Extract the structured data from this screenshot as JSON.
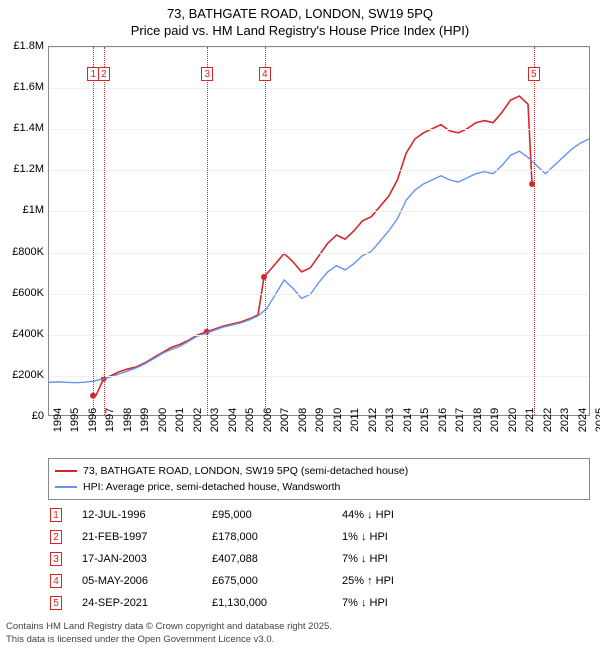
{
  "header": {
    "line1": "73, BATHGATE ROAD, LONDON, SW19 5PQ",
    "line2": "Price paid vs. HM Land Registry's House Price Index (HPI)"
  },
  "chart": {
    "type": "line",
    "background_color": "#ffffff",
    "grid_color": "#f0f0f0",
    "x": {
      "min": 1994,
      "max": 2025,
      "step": 1,
      "labels": [
        "1994",
        "1995",
        "1996",
        "1997",
        "1998",
        "1999",
        "2000",
        "2001",
        "2002",
        "2003",
        "2004",
        "2005",
        "2006",
        "2007",
        "2008",
        "2009",
        "2010",
        "2011",
        "2012",
        "2013",
        "2014",
        "2015",
        "2016",
        "2017",
        "2018",
        "2019",
        "2020",
        "2021",
        "2022",
        "2023",
        "2024",
        "2025"
      ]
    },
    "y": {
      "min": 0,
      "max": 1800000,
      "step": 200000,
      "labels": [
        "£0",
        "£200K",
        "£400K",
        "£600K",
        "£800K",
        "£1M",
        "£1.2M",
        "£1.4M",
        "£1.6M",
        "£1.8M"
      ]
    },
    "series": [
      {
        "name": "73, BATHGATE ROAD, LONDON, SW19 5PQ (semi-detached house)",
        "color": "#d62728",
        "width": 1.6,
        "data": [
          [
            1996.53,
            95000
          ],
          [
            1996.7,
            96000
          ],
          [
            1997.14,
            178000
          ],
          [
            1997.5,
            190000
          ],
          [
            1998,
            210000
          ],
          [
            1998.5,
            225000
          ],
          [
            1999,
            235000
          ],
          [
            1999.5,
            255000
          ],
          [
            2000,
            280000
          ],
          [
            2000.5,
            305000
          ],
          [
            2001,
            330000
          ],
          [
            2001.5,
            345000
          ],
          [
            2002,
            365000
          ],
          [
            2002.5,
            390000
          ],
          [
            2003.05,
            407088
          ],
          [
            2003.5,
            420000
          ],
          [
            2004,
            435000
          ],
          [
            2004.5,
            445000
          ],
          [
            2005,
            455000
          ],
          [
            2005.5,
            470000
          ],
          [
            2006,
            490000
          ],
          [
            2006.34,
            675000
          ],
          [
            2006.5,
            690000
          ],
          [
            2007,
            740000
          ],
          [
            2007.5,
            790000
          ],
          [
            2008,
            750000
          ],
          [
            2008.5,
            700000
          ],
          [
            2009,
            720000
          ],
          [
            2009.5,
            780000
          ],
          [
            2010,
            840000
          ],
          [
            2010.5,
            880000
          ],
          [
            2011,
            860000
          ],
          [
            2011.5,
            900000
          ],
          [
            2012,
            950000
          ],
          [
            2012.5,
            970000
          ],
          [
            2013,
            1020000
          ],
          [
            2013.5,
            1070000
          ],
          [
            2014,
            1150000
          ],
          [
            2014.5,
            1280000
          ],
          [
            2015,
            1350000
          ],
          [
            2015.5,
            1380000
          ],
          [
            2016,
            1400000
          ],
          [
            2016.5,
            1420000
          ],
          [
            2017,
            1390000
          ],
          [
            2017.5,
            1380000
          ],
          [
            2018,
            1400000
          ],
          [
            2018.5,
            1430000
          ],
          [
            2019,
            1440000
          ],
          [
            2019.5,
            1430000
          ],
          [
            2020,
            1480000
          ],
          [
            2020.5,
            1540000
          ],
          [
            2021,
            1560000
          ],
          [
            2021.5,
            1520000
          ],
          [
            2021.73,
            1130000
          ],
          [
            2021.8,
            1140000
          ]
        ],
        "dots": [
          [
            1996.53,
            95000
          ],
          [
            1997.14,
            178000
          ],
          [
            2003.05,
            407088
          ],
          [
            2006.34,
            675000
          ],
          [
            2021.73,
            1130000
          ]
        ]
      },
      {
        "name": "HPI: Average price, semi-detached house, Wandsworth",
        "color": "#6495ed",
        "width": 1.4,
        "data": [
          [
            1994,
            160000
          ],
          [
            1994.5,
            162000
          ],
          [
            1995,
            160000
          ],
          [
            1995.5,
            158000
          ],
          [
            1996,
            160000
          ],
          [
            1996.5,
            165000
          ],
          [
            1997,
            175000
          ],
          [
            1997.5,
            185000
          ],
          [
            1998,
            200000
          ],
          [
            1998.5,
            215000
          ],
          [
            1999,
            230000
          ],
          [
            1999.5,
            250000
          ],
          [
            2000,
            275000
          ],
          [
            2000.5,
            300000
          ],
          [
            2001,
            320000
          ],
          [
            2001.5,
            335000
          ],
          [
            2002,
            360000
          ],
          [
            2002.5,
            385000
          ],
          [
            2003,
            400000
          ],
          [
            2003.5,
            415000
          ],
          [
            2004,
            430000
          ],
          [
            2004.5,
            440000
          ],
          [
            2005,
            450000
          ],
          [
            2005.5,
            465000
          ],
          [
            2006,
            485000
          ],
          [
            2006.5,
            520000
          ],
          [
            2007,
            590000
          ],
          [
            2007.5,
            660000
          ],
          [
            2008,
            620000
          ],
          [
            2008.5,
            570000
          ],
          [
            2009,
            590000
          ],
          [
            2009.5,
            650000
          ],
          [
            2010,
            700000
          ],
          [
            2010.5,
            730000
          ],
          [
            2011,
            710000
          ],
          [
            2011.5,
            740000
          ],
          [
            2012,
            780000
          ],
          [
            2012.5,
            800000
          ],
          [
            2013,
            850000
          ],
          [
            2013.5,
            900000
          ],
          [
            2014,
            960000
          ],
          [
            2014.5,
            1050000
          ],
          [
            2015,
            1100000
          ],
          [
            2015.5,
            1130000
          ],
          [
            2016,
            1150000
          ],
          [
            2016.5,
            1170000
          ],
          [
            2017,
            1150000
          ],
          [
            2017.5,
            1140000
          ],
          [
            2018,
            1160000
          ],
          [
            2018.5,
            1180000
          ],
          [
            2019,
            1190000
          ],
          [
            2019.5,
            1180000
          ],
          [
            2020,
            1220000
          ],
          [
            2020.5,
            1270000
          ],
          [
            2021,
            1290000
          ],
          [
            2021.5,
            1260000
          ],
          [
            2022,
            1220000
          ],
          [
            2022.5,
            1180000
          ],
          [
            2023,
            1220000
          ],
          [
            2023.5,
            1260000
          ],
          [
            2024,
            1300000
          ],
          [
            2024.5,
            1330000
          ],
          [
            2025,
            1350000
          ]
        ]
      }
    ],
    "event_lines": [
      {
        "num": "1",
        "year": 1996.53,
        "color": "#d62728"
      },
      {
        "num": "2",
        "year": 1997.14,
        "color": "#d62728"
      },
      {
        "num": "3",
        "year": 2003.05,
        "color": "#d62728"
      },
      {
        "num": "4",
        "year": 2006.34,
        "color": "#d62728"
      },
      {
        "num": "5",
        "year": 2021.73,
        "color": "#d62728"
      }
    ]
  },
  "legend": {
    "items": [
      {
        "color": "#d62728",
        "label": "73, BATHGATE ROAD, LONDON, SW19 5PQ (semi-detached house)"
      },
      {
        "color": "#6495ed",
        "label": "HPI: Average price, semi-detached house, Wandsworth"
      }
    ]
  },
  "events_table": {
    "rows": [
      {
        "num": "1",
        "date": "12-JUL-1996",
        "price": "£95,000",
        "delta": "44% ↓ HPI"
      },
      {
        "num": "2",
        "date": "21-FEB-1997",
        "price": "£178,000",
        "delta": "1% ↓ HPI"
      },
      {
        "num": "3",
        "date": "17-JAN-2003",
        "price": "£407,088",
        "delta": "7% ↓ HPI"
      },
      {
        "num": "4",
        "date": "05-MAY-2006",
        "price": "£675,000",
        "delta": "25% ↑ HPI"
      },
      {
        "num": "5",
        "date": "24-SEP-2021",
        "price": "£1,130,000",
        "delta": "7% ↓ HPI"
      }
    ]
  },
  "footer": {
    "line1": "Contains HM Land Registry data © Crown copyright and database right 2025.",
    "line2": "This data is licensed under the Open Government Licence v3.0."
  }
}
